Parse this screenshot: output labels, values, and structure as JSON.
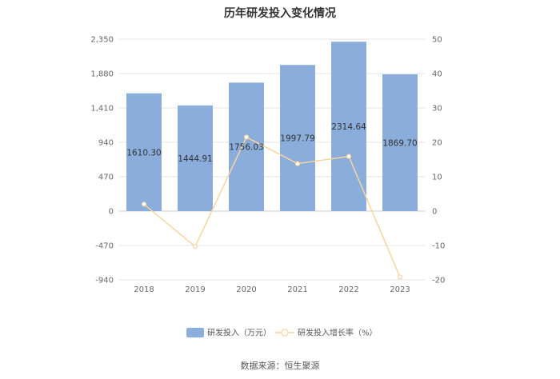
{
  "chart_data": {
    "type": "bar",
    "title": "历年研发投入变化情况",
    "categories": [
      "2018",
      "2019",
      "2020",
      "2021",
      "2022",
      "2023"
    ],
    "series": [
      {
        "name": "研发投入（万元）",
        "type": "bar",
        "axis": "left",
        "color": "#8aaddb",
        "values": [
          1610.3,
          1444.91,
          1756.03,
          1997.79,
          2314.64,
          1869.7
        ],
        "labels": [
          "1610.30",
          "1444.91",
          "1756.03",
          "1997.79",
          "2314.64",
          "1869.70"
        ]
      },
      {
        "name": "研发投入增长率（%）",
        "type": "line",
        "axis": "right",
        "color": "#f8d49e",
        "values": [
          2,
          -10.3,
          21.5,
          13.8,
          15.9,
          -19.2
        ]
      }
    ],
    "y_left": {
      "ticks": [
        "2,350",
        "1,880",
        "1,410",
        "940",
        "470",
        "0",
        "-470",
        "-940"
      ],
      "min": -940,
      "max": 2350
    },
    "y_right": {
      "ticks": [
        "50",
        "40",
        "30",
        "20",
        "10",
        "0",
        "-10",
        "-20"
      ],
      "min": -20,
      "max": 50
    },
    "grid": true,
    "legend_position": "bottom"
  },
  "source": "数据来源：恒生聚源"
}
